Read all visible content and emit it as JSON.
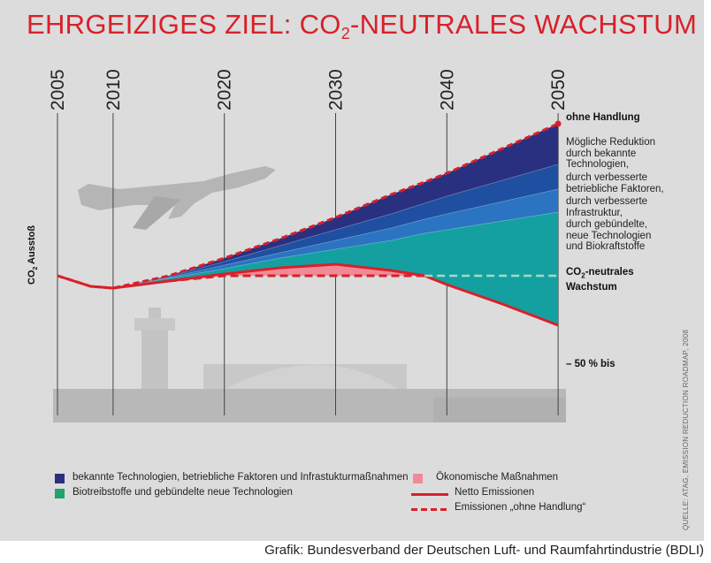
{
  "title_main": "EHRGEIZIGES ZIEL: CO",
  "title_sub": "2",
  "title_rest": "-NEUTRALES WACHSTUM",
  "chart_data": {
    "type": "area",
    "x": [
      2005,
      2008,
      2010,
      2015,
      2020,
      2025,
      2030,
      2035,
      2038,
      2040,
      2045,
      2050
    ],
    "x_tick_labels": [
      "2005",
      "2010",
      "2020",
      "2030",
      "2040",
      "2050"
    ],
    "ylabel": "CO2 Ausstoß",
    "series": [
      {
        "name": "ohne Handlung",
        "style": "dashed-red",
        "values": [
          100,
          94,
          93,
          100,
          110,
          121,
          133,
          146,
          153,
          158,
          172,
          186
        ]
      },
      {
        "name": "Mögliche Reduktion durch bekannte Technologien,",
        "color": "#2a3080",
        "values": [
          100,
          94,
          93,
          99.5,
          108,
          117,
          126,
          135,
          141,
          145,
          154,
          163
        ]
      },
      {
        "name": "durch verbesserte betriebliche Faktoren,",
        "color": "#1f4fa0",
        "values": [
          100,
          94,
          93,
          99,
          106,
          113,
          120,
          127,
          132,
          135,
          142,
          149
        ]
      },
      {
        "name": "durch verbesserte Infrastruktur,",
        "color": "#2b74c2",
        "values": [
          100,
          94,
          93,
          98.5,
          104,
          110,
          115,
          120,
          124,
          126,
          131,
          136
        ]
      },
      {
        "name": "durch gebündelte, neue Technologien und Biokraftstoffe",
        "color": "#14a0a0",
        "values": [
          100,
          94,
          93,
          97,
          101,
          104.5,
          106.5,
          103,
          100,
          95,
          84,
          72
        ]
      },
      {
        "name": "Netto Emissionen",
        "style": "solid-red",
        "values": [
          100,
          94,
          93,
          97,
          101,
          104.5,
          106.5,
          103,
          100,
          95,
          84,
          72
        ]
      },
      {
        "name": "CO2-neutrales Wachstum",
        "style": "dashed-red",
        "values": [
          100,
          94,
          93,
          97,
          100,
          100,
          100,
          100,
          100,
          100,
          100,
          100
        ]
      }
    ],
    "annotations": [
      "ohne Handlung",
      "CO2-neutrales Wachstum",
      "– 50 % bis"
    ],
    "grid": false
  },
  "annotations": {
    "ohne": "ohne Handlung",
    "red1": "Mögliche Reduktion",
    "red2": "durch bekannte",
    "red3": "Technologien,",
    "bet1": "durch verbesserte",
    "bet2": "betriebliche Faktoren,",
    "inf1": "durch verbesserte",
    "inf2": "Infrastruktur,",
    "geb1": "durch gebündelte,",
    "geb2": "neue Technologien",
    "geb3": "und Biokraftstoffe",
    "co2_a": "CO",
    "co2_sub": "2",
    "co2_b": "-neutrales",
    "co2_c": "Wachstum",
    "minus50": "– 50 % bis",
    "ylabel_a": "CO",
    "ylabel_sub": "2",
    "ylabel_b": " Ausstoß"
  },
  "legend": {
    "item1": "bekannte Technologien, betriebliche Faktoren und Infrastukturmaßnahmen",
    "item2": "Biotreibstoffe und gebündelte neue Technologien",
    "item3": "Ökonomische Maßnahmen",
    "item4": "Netto Emissionen",
    "item5": "Emissionen „ohne Handlung“",
    "color1": "#2a3080",
    "color2": "#21a36c",
    "color3": "#f08a96"
  },
  "source": "QUELLE: ATAG, EMISSION REDUCTION ROADMAP, 2008",
  "footer": "Grafik: Bundesverband der Deutschen Luft- und Raumfahrtindustrie (BDLI)",
  "icons": [
    "airplane-icon",
    "airport-skyline-icon"
  ],
  "colors": {
    "accent": "#d9202a",
    "background": "#dcdcdc"
  }
}
